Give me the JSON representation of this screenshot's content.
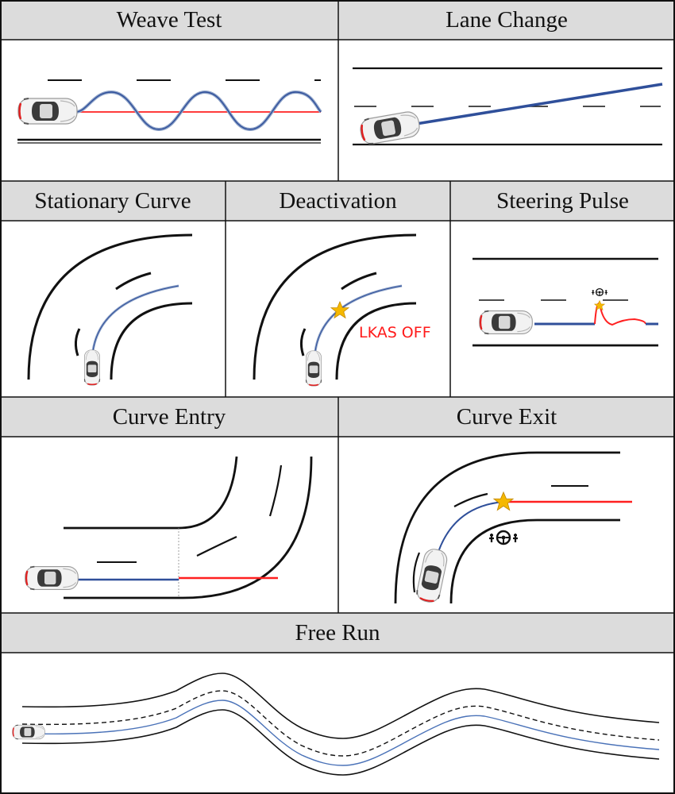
{
  "panels": {
    "weave_test": {
      "title": "Weave Test"
    },
    "lane_change": {
      "title": "Lane Change"
    },
    "stationary_curve": {
      "title": "Stationary Curve"
    },
    "deactivation": {
      "title": "Deactivation",
      "annotation": "LKAS OFF"
    },
    "steering_pulse": {
      "title": "Steering Pulse"
    },
    "curve_entry": {
      "title": "Curve Entry"
    },
    "curve_exit": {
      "title": "Curve Exit"
    },
    "free_run": {
      "title": "Free Run"
    }
  },
  "colors": {
    "header_bg": "#dcdcdc",
    "path_blue": "#2f4f9a",
    "path_red": "#ff2020",
    "star": "#f5b800",
    "annotation_red": "#ff1a1a"
  },
  "icons": [
    "car-icon",
    "star-icon",
    "steering-wheel-hands-icon"
  ]
}
